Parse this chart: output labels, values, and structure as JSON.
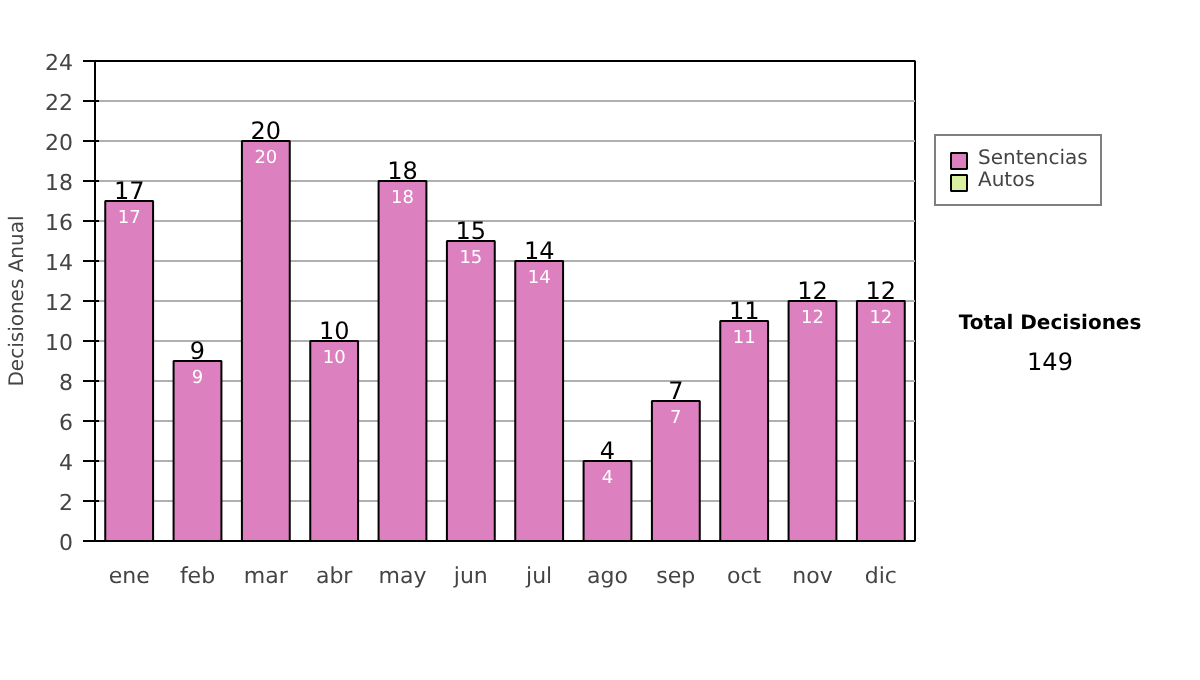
{
  "chart_data": {
    "type": "bar",
    "categories": [
      "ene",
      "feb",
      "mar",
      "abr",
      "may",
      "jun",
      "jul",
      "ago",
      "sep",
      "oct",
      "nov",
      "dic"
    ],
    "series": [
      {
        "name": "Sentencias",
        "color": "#dd80c0",
        "values": [
          17,
          9,
          20,
          10,
          18,
          15,
          14,
          4,
          7,
          11,
          12,
          12
        ]
      },
      {
        "name": "Autos",
        "color": "#d8f0a0",
        "values": [
          null,
          null,
          null,
          null,
          null,
          null,
          null,
          null,
          null,
          null,
          null,
          null
        ]
      }
    ],
    "ylabel": "Decisiones Anual",
    "ylim": [
      0,
      24
    ],
    "yticks": [
      0,
      2,
      4,
      6,
      8,
      10,
      12,
      14,
      16,
      18,
      20,
      22,
      24
    ],
    "grid": "y",
    "legend": "right",
    "data_labels": true,
    "annotations": [
      "Total Decisiones",
      "149",
      {
        "text": "17",
        "x": "ene",
        "y": 17
      },
      {
        "text": "9",
        "x": "feb",
        "y": 9
      },
      {
        "text": "20",
        "x": "mar",
        "y": 20
      },
      {
        "text": "10",
        "x": "abr",
        "y": 10
      },
      {
        "text": "18",
        "x": "may",
        "y": 18
      },
      {
        "text": "15",
        "x": "jun",
        "y": 15
      },
      {
        "text": "14",
        "x": "jul",
        "y": 14
      },
      {
        "text": "4",
        "x": "ago",
        "y": 4
      },
      {
        "text": "7",
        "x": "sep",
        "y": 7
      },
      {
        "text": "11",
        "x": "oct",
        "y": 11
      },
      {
        "text": "12",
        "x": "nov",
        "y": 12
      },
      {
        "text": "12",
        "x": "dic",
        "y": 12
      }
    ]
  }
}
